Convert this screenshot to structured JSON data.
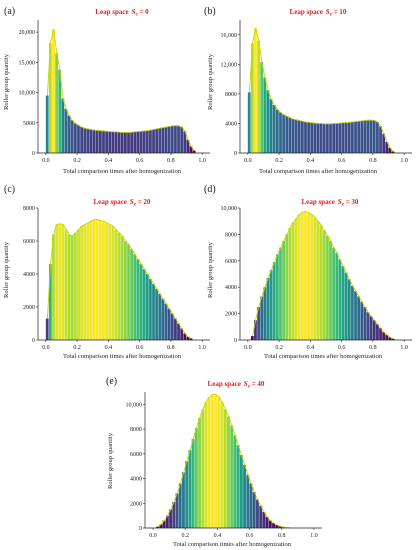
{
  "chart_data": [
    {
      "type": "bar",
      "panel_label": "(a)",
      "title_prefix": "Leap space",
      "title_symbol": "S",
      "title_subscript": "e",
      "title_value": " = 0",
      "xlabel": "Total comparison times after homogenization",
      "ylabel": "Roller group quantity",
      "xlim": [
        -0.05,
        1.05
      ],
      "ylim": [
        0,
        22000
      ],
      "xticks": [
        0.0,
        0.2,
        0.4,
        0.6,
        0.8,
        1.0
      ],
      "xtick_labels": [
        "0.0",
        "0.2",
        "0.4",
        "0.6",
        "0.8",
        "1.0"
      ],
      "yticks": [
        0,
        5000,
        10000,
        15000,
        20000
      ],
      "ytick_labels": [
        "0",
        "5000",
        "10,000",
        "15,000",
        "20,000"
      ],
      "x_start": 0.0,
      "bin_width": 0.02,
      "values": [
        9500,
        18200,
        20500,
        16500,
        13800,
        9000,
        7300,
        6200,
        5400,
        4900,
        4600,
        4300,
        4100,
        4000,
        3900,
        3800,
        3750,
        3700,
        3650,
        3600,
        3550,
        3500,
        3500,
        3450,
        3400,
        3400,
        3400,
        3450,
        3500,
        3550,
        3600,
        3650,
        3700,
        3800,
        3900,
        4000,
        4100,
        4200,
        4300,
        4400,
        4500,
        4550,
        4500,
        4300,
        3600,
        2200,
        1100,
        400
      ]
    },
    {
      "type": "bar",
      "panel_label": "(b)",
      "title_prefix": "Leap space",
      "title_symbol": "S",
      "title_subscript": "e",
      "title_value": " = 10",
      "xlabel": "Total comparison times after homogenization",
      "ylabel": "Roller group quantity",
      "xlim": [
        -0.05,
        1.05
      ],
      "ylim": [
        0,
        18000
      ],
      "xticks": [
        0.0,
        0.2,
        0.4,
        0.6,
        0.8,
        1.0
      ],
      "xtick_labels": [
        "0.0",
        "0.2",
        "0.4",
        "0.6",
        "0.8",
        "1.0"
      ],
      "yticks": [
        0,
        4000,
        8000,
        12000,
        16000
      ],
      "ytick_labels": [
        "0",
        "4000",
        "8000",
        "12,000",
        "16,000"
      ],
      "x_start": 0.0,
      "bin_width": 0.02,
      "values": [
        8200,
        14800,
        16900,
        15200,
        12300,
        10200,
        8500,
        7300,
        6500,
        5900,
        5500,
        5200,
        5000,
        4800,
        4600,
        4500,
        4400,
        4300,
        4200,
        4150,
        4100,
        4050,
        4000,
        4000,
        3950,
        3950,
        3950,
        4000,
        4000,
        4050,
        4100,
        4100,
        4150,
        4200,
        4250,
        4300,
        4350,
        4400,
        4450,
        4450,
        4400,
        4200,
        3600,
        2600,
        1500,
        700,
        200
      ]
    },
    {
      "type": "bar",
      "panel_label": "(c)",
      "title_prefix": "Leap space",
      "title_symbol": "S",
      "title_subscript": "e",
      "title_value": " = 20",
      "xlabel": "Total comparison times after homogenization",
      "ylabel": "Roller group quantity",
      "xlim": [
        -0.05,
        1.05
      ],
      "ylim": [
        0,
        8000
      ],
      "xticks": [
        0.0,
        0.2,
        0.4,
        0.6,
        0.8,
        1.0
      ],
      "xtick_labels": [
        "0.0",
        "0.2",
        "0.4",
        "0.6",
        "0.8",
        "1.0"
      ],
      "yticks": [
        0,
        2000,
        4000,
        6000,
        8000
      ],
      "ytick_labels": [
        "0",
        "2000",
        "4000",
        "6000",
        "8000"
      ],
      "x_start": 0.0,
      "bin_width": 0.02,
      "values": [
        1300,
        4600,
        6400,
        7000,
        7050,
        7000,
        6700,
        6400,
        6300,
        6500,
        6700,
        6900,
        7000,
        7100,
        7200,
        7300,
        7300,
        7250,
        7200,
        7100,
        7000,
        6900,
        6700,
        6500,
        6300,
        6000,
        5800,
        5500,
        5200,
        4900,
        4600,
        4300,
        4000,
        3700,
        3400,
        3100,
        2800,
        2500,
        2200,
        1900,
        1600,
        1300,
        1000,
        700,
        400,
        200,
        100
      ]
    },
    {
      "type": "bar",
      "panel_label": "(d)",
      "title_prefix": "Leap space",
      "title_symbol": "S",
      "title_subscript": "e",
      "title_value": " = 30",
      "xlabel": "Total comparison times after homogenization",
      "ylabel": "Roller group quantity",
      "xlim": [
        -0.05,
        1.05
      ],
      "ylim": [
        0,
        10000
      ],
      "xticks": [
        0.0,
        0.2,
        0.4,
        0.6,
        0.8,
        1.0
      ],
      "xtick_labels": [
        "0.0",
        "0.2",
        "0.4",
        "0.6",
        "0.8",
        "1.0"
      ],
      "yticks": [
        0,
        2000,
        4000,
        6000,
        8000,
        10000
      ],
      "ytick_labels": [
        "0",
        "2000",
        "4000",
        "6000",
        "8000",
        "10,000"
      ],
      "x_start": 0.02,
      "bin_width": 0.02,
      "values": [
        300,
        1500,
        2500,
        3300,
        4000,
        4700,
        5300,
        5900,
        6500,
        7000,
        7500,
        8000,
        8500,
        8900,
        9200,
        9500,
        9700,
        9750,
        9650,
        9500,
        9300,
        9000,
        8700,
        8300,
        7900,
        7500,
        7000,
        6600,
        6100,
        5600,
        5100,
        4600,
        4100,
        3700,
        3300,
        2900,
        2500,
        2100,
        1800,
        1500,
        1200,
        900,
        600,
        400,
        200,
        100
      ]
    },
    {
      "type": "bar",
      "panel_label": "(e)",
      "title_prefix": "Leap space",
      "title_symbol": "S",
      "title_subscript": "e",
      "title_value": " = 40",
      "xlabel": "Total comparison times after homogenization",
      "ylabel": "Roller group quantity",
      "xlim": [
        -0.05,
        1.05
      ],
      "ylim": [
        0,
        11000
      ],
      "xticks": [
        0.0,
        0.2,
        0.4,
        0.6,
        0.8,
        1.0
      ],
      "xtick_labels": [
        "0.0",
        "0.2",
        "0.4",
        "0.6",
        "0.8",
        "1.0"
      ],
      "yticks": [
        0,
        2000,
        4000,
        6000,
        8000,
        10000
      ],
      "ytick_labels": [
        "0",
        "2000",
        "4000",
        "6000",
        "8000",
        "10,000"
      ],
      "x_start": 0.02,
      "bin_width": 0.02,
      "values": [
        100,
        300,
        600,
        1000,
        1500,
        2100,
        2800,
        3600,
        4500,
        5400,
        6300,
        7200,
        8100,
        8900,
        9600,
        10200,
        10600,
        10800,
        10800,
        10600,
        10200,
        9600,
        9000,
        8300,
        7500,
        6700,
        5900,
        5100,
        4300,
        3600,
        2900,
        2300,
        1800,
        1300,
        900,
        600,
        400,
        250,
        150,
        80,
        40,
        20
      ]
    }
  ]
}
